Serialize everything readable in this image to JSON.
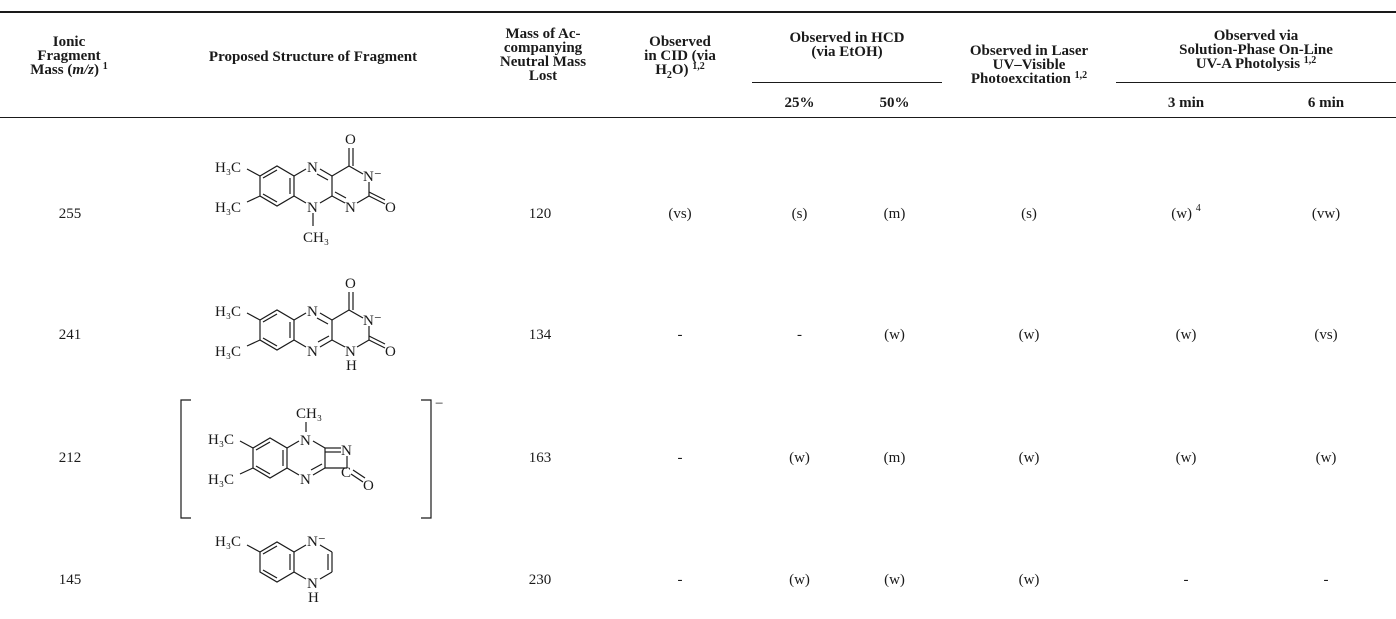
{
  "table": {
    "headers": {
      "ionic_mass": {
        "line1": "Ionic",
        "line2": "Fragment",
        "line3_pre": "Mass (",
        "line3_italic": "m/z",
        "line3_post": ")",
        "sup": "1"
      },
      "structure": "Proposed Structure of Fragment",
      "neutral_mass": {
        "line1": "Mass of Ac-",
        "line2": "companying",
        "line3": "Neutral Mass",
        "line4": "Lost"
      },
      "cid": {
        "line1": "Observed",
        "line2": "in CID (via",
        "line3_pre": "H",
        "line3_sub": "2",
        "line3_post": "O)",
        "sup": "1,2"
      },
      "hcd": {
        "line1": "Observed in HCD",
        "line2": "(via EtOH)",
        "sub1": "25%",
        "sub2": "50%"
      },
      "laser": {
        "line1": "Observed in Laser",
        "line2": "UV–Visible",
        "line3": "Photoexcitation",
        "sup": "1,2"
      },
      "photolysis": {
        "line1": "Observed via",
        "line2": "Solution-Phase On-Line",
        "line3": "UV-A Photolysis",
        "sup": "1,2",
        "sub1": "3 min",
        "sub2": "6 min"
      }
    },
    "rows": [
      {
        "mass": "255",
        "neutral": "120",
        "cid": "(vs)",
        "hcd25": "(s)",
        "hcd50": "(m)",
        "laser": "(s)",
        "p3": "(w)",
        "p3_sup": "4",
        "p6": "(vw)"
      },
      {
        "mass": "241",
        "neutral": "134",
        "cid": "-",
        "hcd25": "-",
        "hcd50": "(w)",
        "laser": "(w)",
        "p3": "(w)",
        "p3_sup": "",
        "p6": "(vs)"
      },
      {
        "mass": "212",
        "neutral": "163",
        "cid": "-",
        "hcd25": "(w)",
        "hcd50": "(m)",
        "laser": "(w)",
        "p3": "(w)",
        "p3_sup": "",
        "p6": "(w)"
      },
      {
        "mass": "145",
        "neutral": "230",
        "cid": "-",
        "hcd25": "(w)",
        "hcd50": "(w)",
        "laser": "(w)",
        "p3": "-",
        "p3_sup": "",
        "p6": "-"
      }
    ]
  },
  "structures": {
    "h3c": "H₃C",
    "ch3": "CH₃",
    "n": "N",
    "n_minus": "N⁻",
    "h": "H",
    "o": "O",
    "c": "C",
    "charge": "−"
  }
}
